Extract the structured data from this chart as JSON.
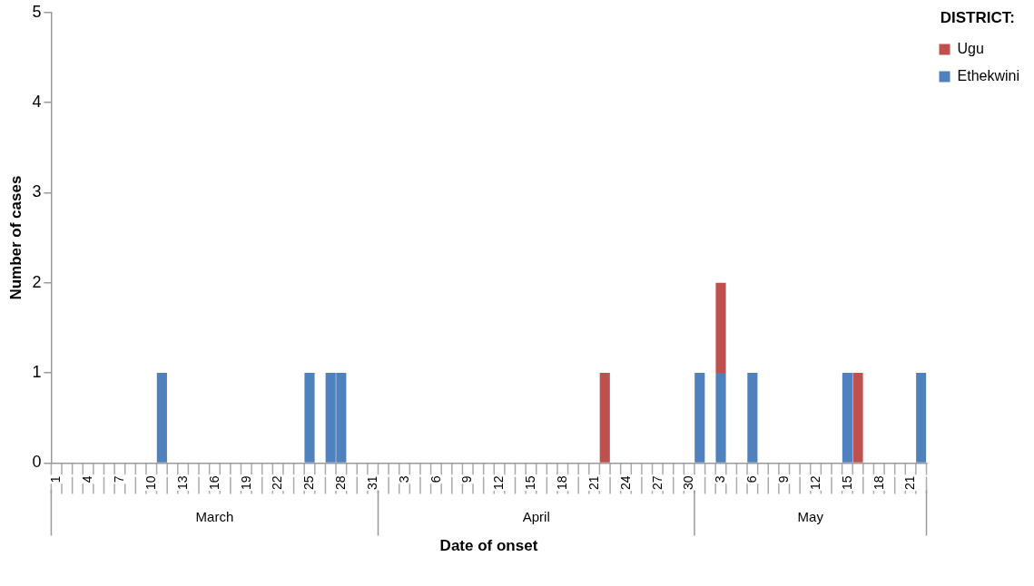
{
  "chart_data": {
    "type": "bar",
    "stacked": true,
    "xlabel": "Date of onset",
    "ylabel": "Number of cases",
    "legend_title": "DISTRICT:",
    "legend": "top right",
    "grid": false,
    "categories": [
      "1",
      null,
      null,
      "4",
      null,
      null,
      "7",
      null,
      null,
      "10",
      null,
      null,
      "13",
      null,
      null,
      "16",
      null,
      null,
      "19",
      null,
      null,
      "22",
      null,
      null,
      "25",
      null,
      null,
      "28",
      null,
      null,
      "31",
      null,
      null,
      "3",
      null,
      null,
      "6",
      null,
      null,
      "9",
      null,
      null,
      "12",
      null,
      null,
      "15",
      null,
      null,
      "18",
      null,
      null,
      "21",
      null,
      null,
      "24",
      null,
      null,
      "27",
      null,
      null,
      "30",
      null,
      null,
      "3",
      null,
      null,
      "6",
      null,
      null,
      "9",
      null,
      null,
      "12",
      null,
      null,
      "15",
      null,
      null,
      "18",
      null,
      null,
      "21",
      null
    ],
    "series": [
      {
        "name": "Ethekwini",
        "color": "#4f81bd",
        "values": [
          0,
          0,
          0,
          0,
          0,
          0,
          0,
          0,
          0,
          0,
          1,
          0,
          0,
          0,
          0,
          0,
          0,
          0,
          0,
          0,
          0,
          0,
          0,
          0,
          1,
          0,
          1,
          1,
          0,
          0,
          0,
          0,
          0,
          0,
          0,
          0,
          0,
          0,
          0,
          0,
          0,
          0,
          0,
          0,
          0,
          0,
          0,
          0,
          0,
          0,
          0,
          0,
          0,
          0,
          0,
          0,
          0,
          0,
          0,
          0,
          0,
          1,
          0,
          1,
          0,
          0,
          1,
          0,
          0,
          0,
          0,
          0,
          0,
          0,
          0,
          1,
          0,
          0,
          0,
          0,
          0,
          0,
          1
        ]
      },
      {
        "name": "Ugu",
        "color": "#c0504d",
        "values": [
          0,
          0,
          0,
          0,
          0,
          0,
          0,
          0,
          0,
          0,
          0,
          0,
          0,
          0,
          0,
          0,
          0,
          0,
          0,
          0,
          0,
          0,
          0,
          0,
          0,
          0,
          0,
          0,
          0,
          0,
          0,
          0,
          0,
          0,
          0,
          0,
          0,
          0,
          0,
          0,
          0,
          0,
          0,
          0,
          0,
          0,
          0,
          0,
          0,
          0,
          0,
          0,
          1,
          0,
          0,
          0,
          0,
          0,
          0,
          0,
          0,
          0,
          0,
          1,
          0,
          0,
          0,
          0,
          0,
          0,
          0,
          0,
          0,
          0,
          0,
          0,
          1,
          0,
          0,
          0,
          0,
          0,
          0
        ]
      }
    ],
    "ylim": [
      0,
      5
    ],
    "yticks": [
      0,
      1,
      2,
      3,
      4,
      5
    ],
    "annotations": [
      "March",
      "April",
      "May"
    ]
  }
}
